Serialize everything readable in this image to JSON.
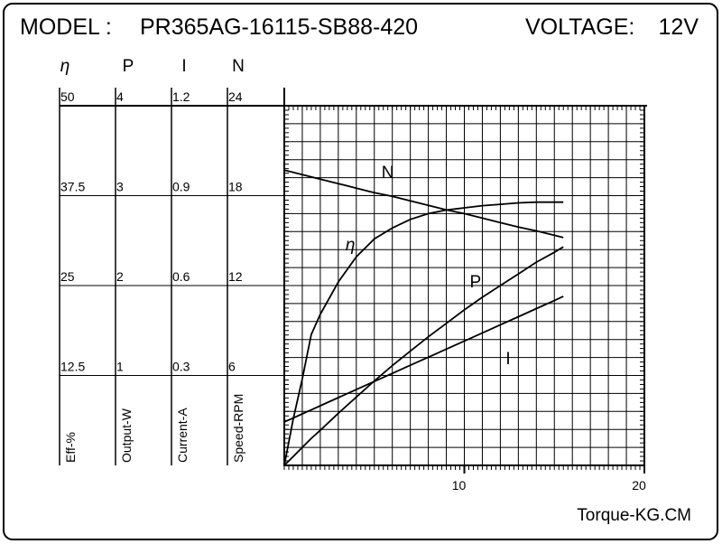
{
  "header": {
    "model_label": "MODEL :",
    "model": "PR365AG-16115-SB88-420",
    "voltage_label": "VOLTAGE:",
    "voltage": "12V"
  },
  "chart_data": {
    "type": "line",
    "xlabel": "Torque-KG.CM",
    "xlim": [
      0,
      20
    ],
    "xticks": [
      10,
      20
    ],
    "grid": true,
    "y_axes": [
      {
        "symbol": "η",
        "label": "Eff-%",
        "ylim": [
          0,
          50
        ],
        "yticks": [
          12.5,
          25,
          37.5,
          50
        ]
      },
      {
        "symbol": "P",
        "label": "Output-W",
        "ylim": [
          0,
          4
        ],
        "yticks": [
          1,
          2,
          3,
          4
        ]
      },
      {
        "symbol": "I",
        "label": "Current-A",
        "ylim": [
          0,
          1.2
        ],
        "yticks": [
          0.3,
          0.6,
          0.9,
          1.2
        ]
      },
      {
        "symbol": "N",
        "label": "Speed-RPM",
        "ylim": [
          0,
          24
        ],
        "yticks": [
          6,
          12,
          18,
          24
        ]
      }
    ],
    "x": [
      0,
      0.5,
      1,
      1.5,
      2,
      3,
      4,
      5,
      6,
      7,
      8,
      9,
      10,
      11,
      12,
      13,
      14,
      15,
      15.5
    ],
    "series": [
      {
        "name": "N",
        "color": "#000000",
        "values": [
          19.7,
          19.55,
          19.4,
          19.25,
          19.1,
          18.8,
          18.5,
          18.2,
          17.95,
          17.65,
          17.35,
          17.05,
          16.8,
          16.5,
          16.2,
          15.9,
          15.65,
          15.35,
          15.2
        ]
      },
      {
        "name": "η",
        "color": "#000000",
        "values": [
          0,
          6.5,
          12,
          18.2,
          21,
          25.5,
          29,
          31.5,
          33,
          34.2,
          35,
          35.5,
          35.8,
          36.1,
          36.3,
          36.5,
          36.6,
          36.6,
          36.6
        ]
      },
      {
        "name": "P",
        "color": "#000000",
        "values": [
          0,
          0.1,
          0.2,
          0.3,
          0.39,
          0.58,
          0.76,
          0.94,
          1.11,
          1.27,
          1.43,
          1.58,
          1.73,
          1.87,
          2.0,
          2.13,
          2.26,
          2.37,
          2.43
        ]
      },
      {
        "name": "I",
        "color": "#000000",
        "values": [
          0.145,
          0.158,
          0.172,
          0.185,
          0.199,
          0.226,
          0.253,
          0.28,
          0.307,
          0.334,
          0.361,
          0.388,
          0.415,
          0.442,
          0.469,
          0.496,
          0.523,
          0.55,
          0.564
        ]
      }
    ]
  }
}
